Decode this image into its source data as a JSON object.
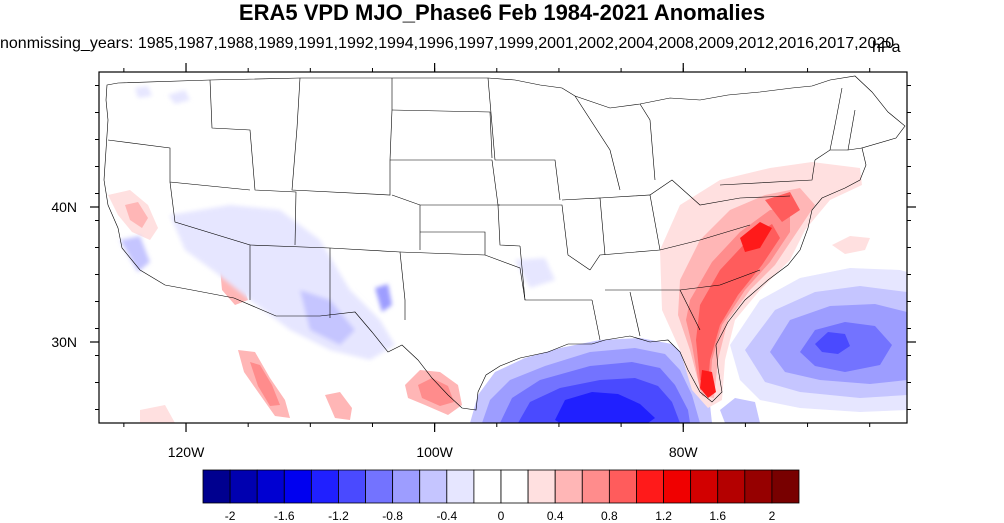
{
  "title": "ERA5 VPD MJO_Phase6 Feb 1984-2021 Anomalies",
  "subtitle": "nonmissing_years: 1985,1987,1988,1989,1991,1992,1994,1996,1997,1999,2001,2002,2004,2008,2009,2012,2016,2017,2020",
  "units": "hPa",
  "map": {
    "region": "Contiguous United States",
    "lon_range": [
      -127,
      -62
    ],
    "lat_range": [
      24,
      50
    ],
    "lon_ticks": [
      {
        "value": -120,
        "label": "120W"
      },
      {
        "value": -100,
        "label": "100W"
      },
      {
        "value": -80,
        "label": "80W"
      }
    ],
    "lat_ticks": [
      {
        "value": 40,
        "label": "40N"
      },
      {
        "value": 30,
        "label": "30N"
      }
    ]
  },
  "colorbar": {
    "colors": [
      "#00008f",
      "#0000b0",
      "#0000d2",
      "#0000f0",
      "#2020ff",
      "#4a4aff",
      "#7373ff",
      "#9d9dff",
      "#c5c5ff",
      "#e6e6ff",
      "#ffffff",
      "#ffffff",
      "#ffe0e0",
      "#ffb6b6",
      "#ff8c8c",
      "#ff5c5c",
      "#ff1a1a",
      "#f00000",
      "#d20000",
      "#b40000",
      "#960000",
      "#780000"
    ],
    "labels": [
      "-2",
      "-1.6",
      "-1.2",
      "-0.8",
      "-0.4",
      "0",
      "0.4",
      "0.8",
      "1.2",
      "1.6",
      "2"
    ]
  },
  "anomaly_regions": [
    {
      "name": "Gulf of Mexico",
      "sign": "negative",
      "level": -1.8
    },
    {
      "name": "Western Atlantic",
      "sign": "negative",
      "level": -1.2
    },
    {
      "name": "Florida",
      "sign": "positive",
      "level": 1.6
    },
    {
      "name": "Carolinas",
      "sign": "positive",
      "level": 1.2
    },
    {
      "name": "Mid-Atlantic",
      "sign": "positive",
      "level": 1.0
    },
    {
      "name": "South Texas",
      "sign": "positive",
      "level": 0.8
    },
    {
      "name": "Baja California",
      "sign": "positive",
      "level": 0.8
    },
    {
      "name": "Southwest US",
      "sign": "negative",
      "level": -0.4
    }
  ]
}
